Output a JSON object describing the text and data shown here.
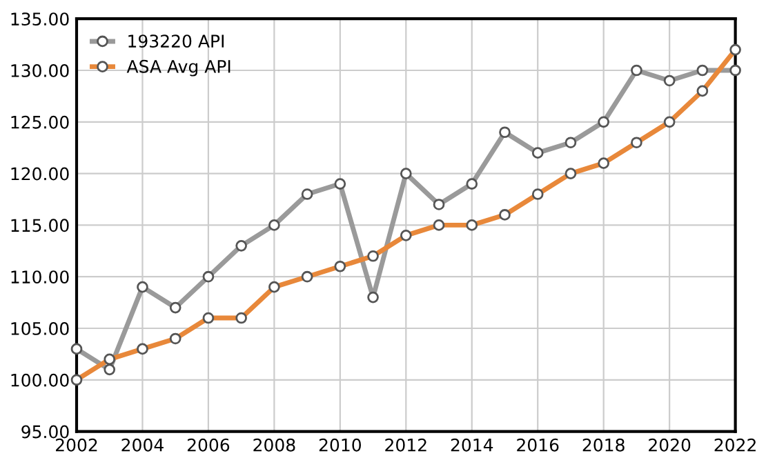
{
  "chart_data": {
    "type": "line",
    "x": [
      2002,
      2003,
      2004,
      2005,
      2006,
      2007,
      2008,
      2009,
      2010,
      2011,
      2012,
      2013,
      2014,
      2015,
      2016,
      2017,
      2018,
      2019,
      2020,
      2021,
      2022
    ],
    "series": [
      {
        "name": "193220 API",
        "color": "#9a9a9a",
        "values": [
          103,
          101,
          109,
          107,
          110,
          113,
          115,
          118,
          119,
          108,
          120,
          117,
          119,
          124,
          122,
          123,
          125,
          130,
          129,
          130,
          130
        ]
      },
      {
        "name": "ASA Avg API",
        "color": "#e8883a",
        "values": [
          100,
          102,
          103,
          104,
          106,
          106,
          109,
          110,
          111,
          112,
          114,
          115,
          115,
          116,
          118,
          120,
          121,
          123,
          125,
          128,
          132
        ]
      }
    ],
    "xlim": [
      2002,
      2022
    ],
    "xticks": [
      2002,
      2004,
      2006,
      2008,
      2010,
      2012,
      2014,
      2016,
      2018,
      2020,
      2022
    ],
    "ylim": [
      95,
      135
    ],
    "yticks": [
      {
        "value": 95,
        "label": "95.00"
      },
      {
        "value": 100,
        "label": "100.00"
      },
      {
        "value": 105,
        "label": "105.00"
      },
      {
        "value": 110,
        "label": "110.00"
      },
      {
        "value": 115,
        "label": "115.00"
      },
      {
        "value": 120,
        "label": "120.00"
      },
      {
        "value": 125,
        "label": "125.00"
      },
      {
        "value": 130,
        "label": "130.00"
      },
      {
        "value": 135,
        "label": "135.00"
      }
    ],
    "grid": true,
    "legend": "top left",
    "marker": "circle",
    "line_style": "solid"
  }
}
